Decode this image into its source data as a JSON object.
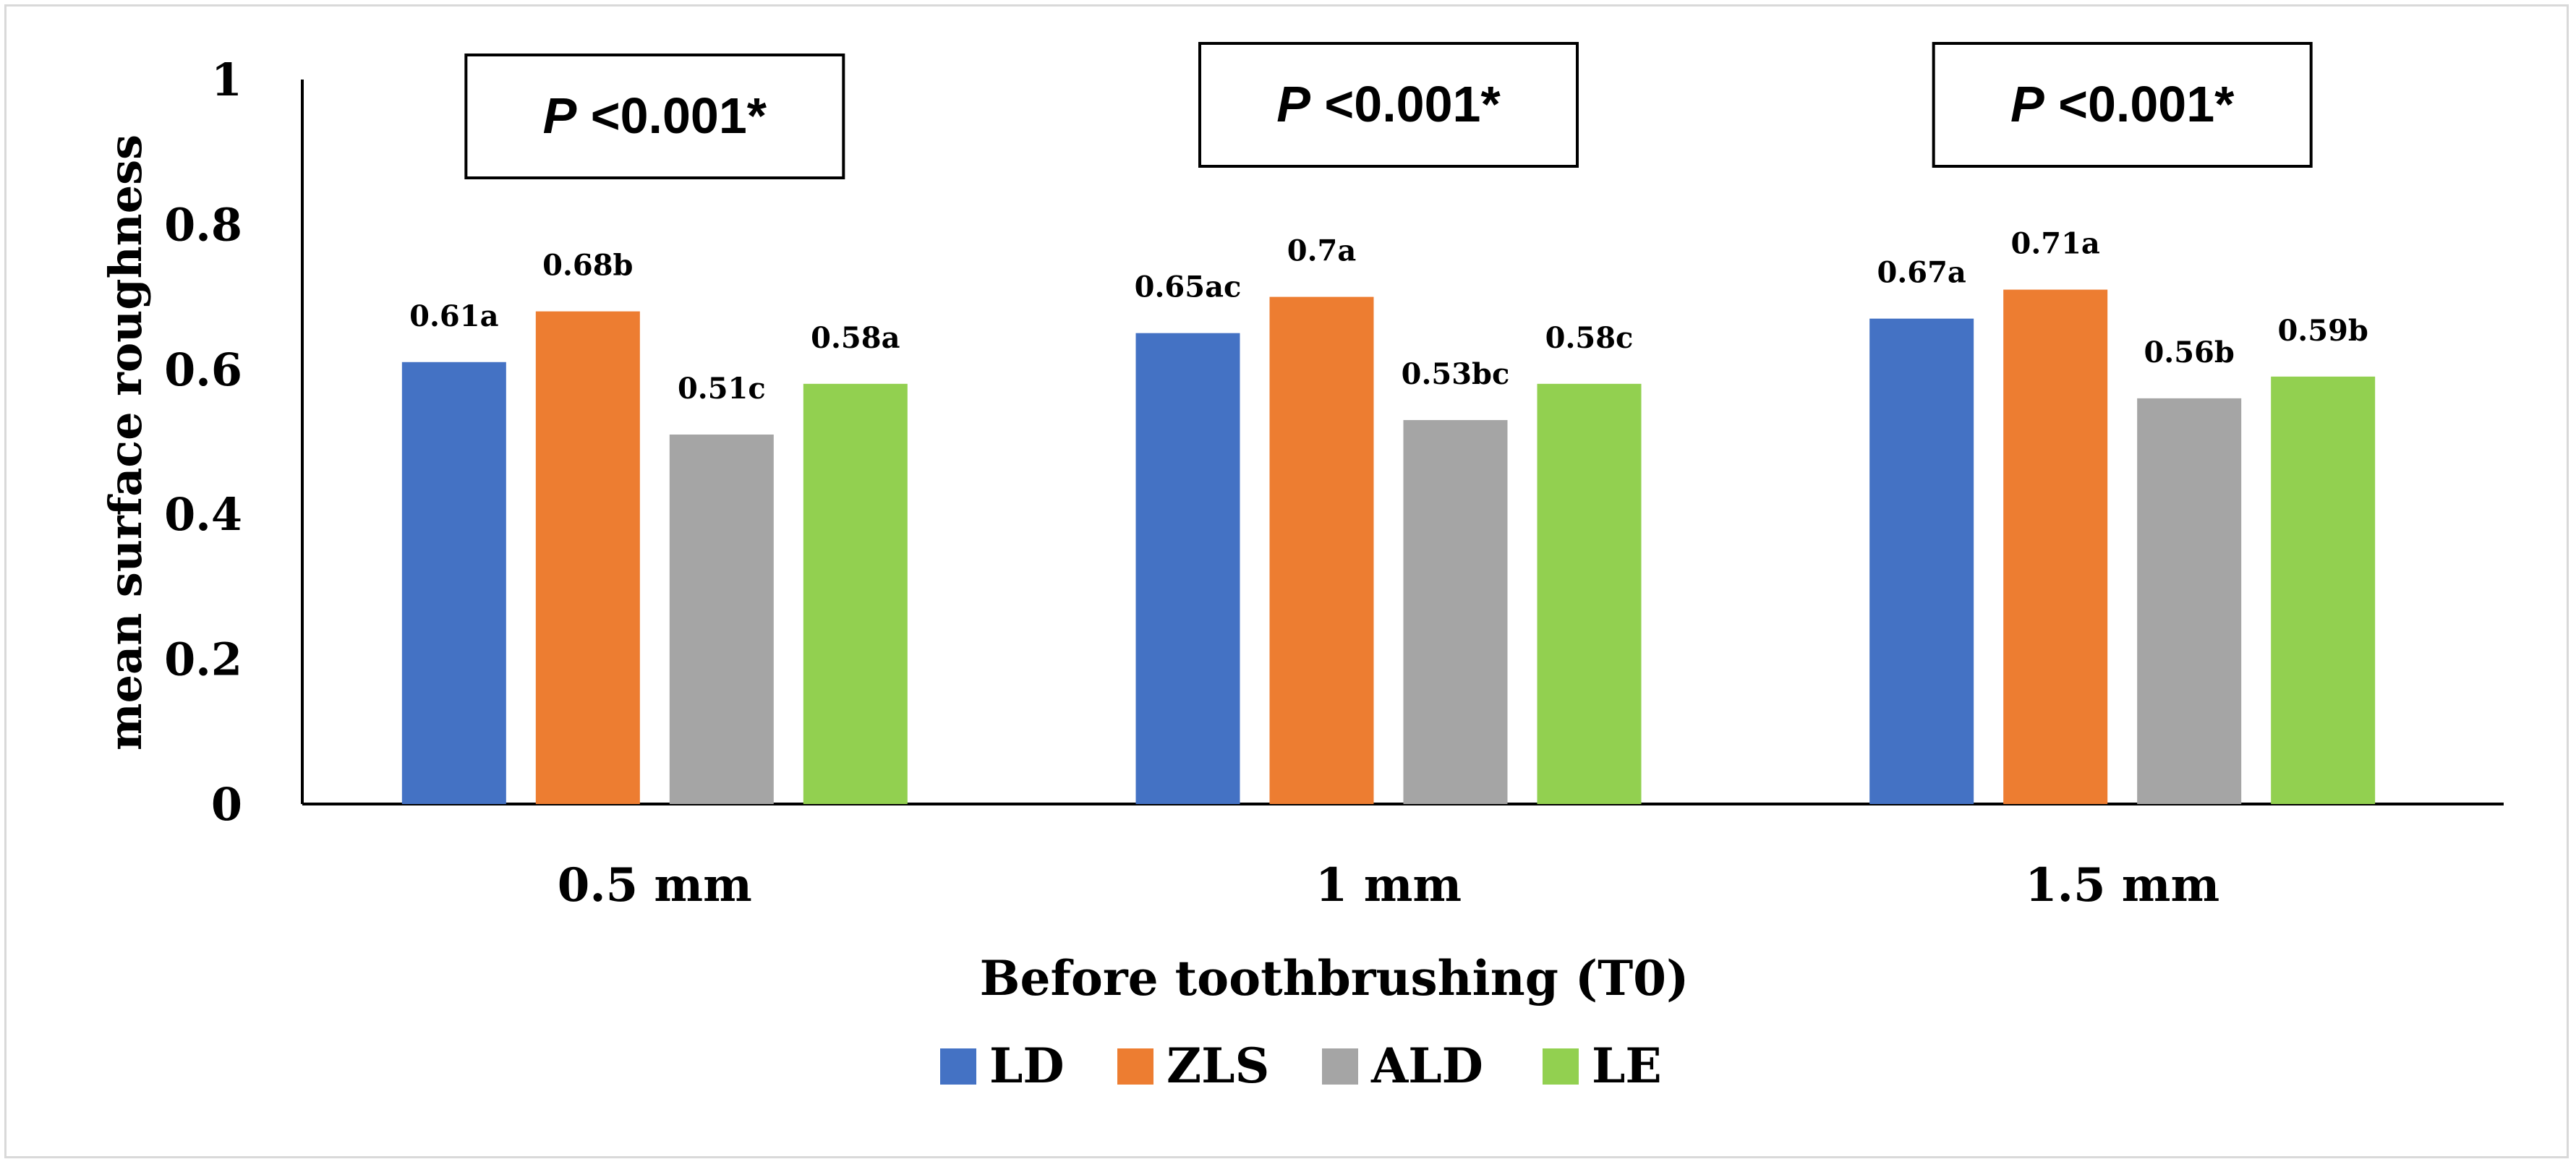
{
  "chart_data": {
    "type": "bar",
    "title": "",
    "xlabel": "Before toothbrushing (T0)",
    "ylabel": "mean surface roughness",
    "ylim": [
      0,
      1
    ],
    "yticks": [
      "0",
      "0.2",
      "0.4",
      "0.6",
      "0.8",
      "1"
    ],
    "grid": false,
    "legend_position": "bottom",
    "categories": [
      "0.5 mm",
      "1 mm",
      "1.5 mm"
    ],
    "series": [
      {
        "name": "LD",
        "color": "#4472C4",
        "values": [
          0.61,
          0.65,
          0.67
        ],
        "labels": [
          "0.61a",
          "0.65ac",
          "0.67a"
        ]
      },
      {
        "name": "ZLS",
        "color": "#ED7D31",
        "values": [
          0.68,
          0.7,
          0.71
        ],
        "labels": [
          "0.68b",
          "0.7a",
          "0.71a"
        ]
      },
      {
        "name": "ALD",
        "color": "#A5A5A5",
        "values": [
          0.51,
          0.53,
          0.56
        ],
        "labels": [
          "0.51c",
          "0.53bc",
          "0.56b"
        ]
      },
      {
        "name": "LE",
        "color": "#92D050",
        "values": [
          0.58,
          0.58,
          0.59
        ],
        "labels": [
          "0.58a",
          "0.58c",
          "0.59b"
        ]
      }
    ],
    "annotations": [
      {
        "p_symbol": "P",
        "p_text": " <0.001*"
      },
      {
        "p_symbol": "P",
        "p_text": " <0.001*"
      },
      {
        "p_symbol": "P",
        "p_text": " <0.001*"
      }
    ]
  }
}
